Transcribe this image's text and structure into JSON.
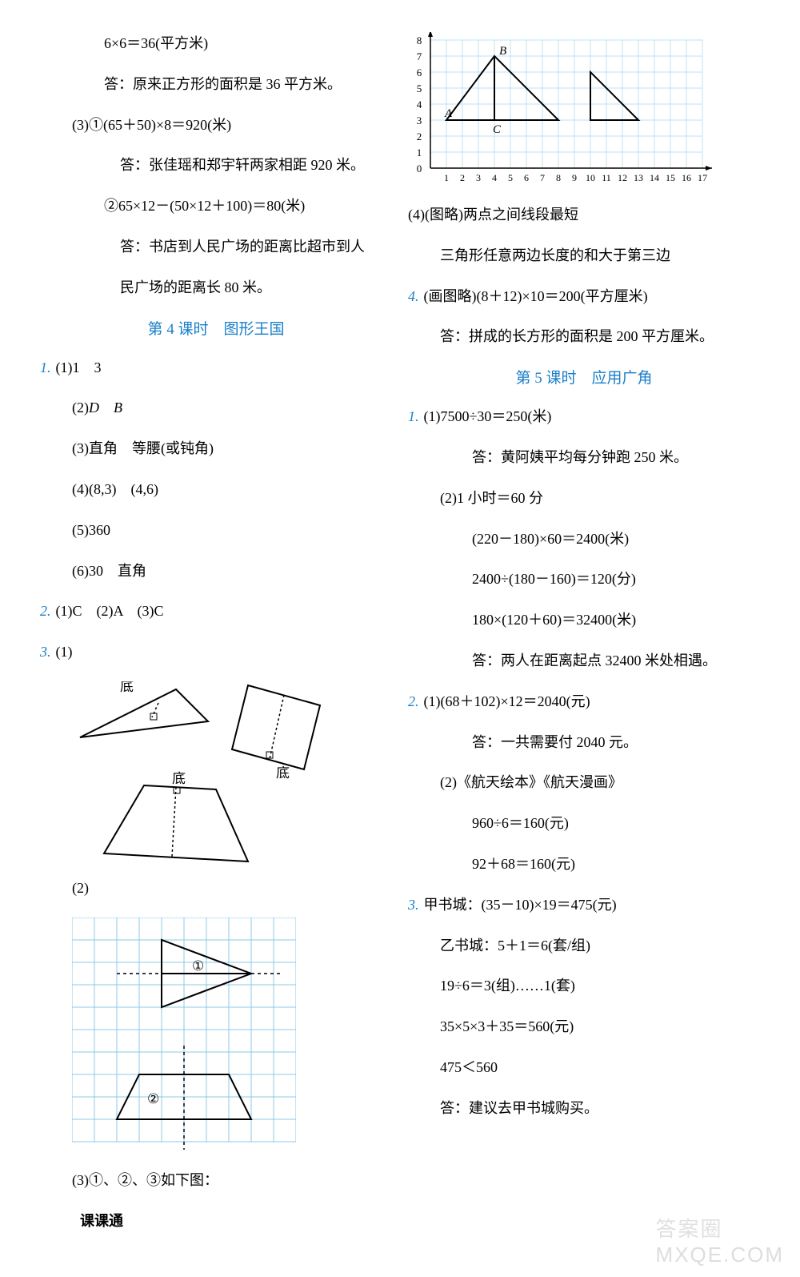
{
  "left": {
    "l1": "6×6＝36(平方米)",
    "l2": "答：原来正方形的面积是 36 平方米。",
    "l3": "(3)①(65＋50)×8＝920(米)",
    "l4": "答：张佳瑶和郑宇轩两家相距 920 米。",
    "l5": "②65×12－(50×12＋100)＝80(米)",
    "l6": "答：书店到人民广场的距离比超市到人",
    "l7": "民广场的距离长 80 米。",
    "sec4": "第 4 课时　图形王国",
    "q1_1": "(1)1　3",
    "q1_2a": "(2)",
    "q1_2b": "D",
    "q1_2c": "　",
    "q1_2d": "B",
    "q1_3": "(3)直角　等腰(或钝角)",
    "q1_4": "(4)(8,3)　(4,6)",
    "q1_5": "(5)360",
    "q1_6": "(6)30　直角",
    "q2": "(1)C　(2)A　(3)C",
    "q3_1": "(1)",
    "q3_fig1_labels": {
      "b1": "底",
      "b2": "底",
      "b3": "底"
    },
    "q3_2": "(2)",
    "q3_fig2_labels": {
      "c1": "①",
      "c2": "②"
    },
    "q3_3": "(3)①、②、③如下图：",
    "footer": "课课通"
  },
  "right": {
    "chart": {
      "y_ticks": [
        "0",
        "1",
        "2",
        "3",
        "4",
        "5",
        "6",
        "7",
        "8"
      ],
      "x_ticks": [
        "1",
        "2",
        "3",
        "4",
        "5",
        "6",
        "7",
        "8",
        "9",
        "10",
        "11",
        "12",
        "13",
        "14",
        "15",
        "16",
        "17"
      ],
      "labels": {
        "A": "A",
        "B": "B",
        "C": "C"
      },
      "grid_color": "#bfe0f3",
      "line_color": "#000000",
      "tri1": {
        "pts": [
          [
            1,
            3
          ],
          [
            4,
            7
          ],
          [
            8,
            3
          ]
        ],
        "alt": [
          [
            4,
            7
          ],
          [
            4,
            3
          ]
        ]
      },
      "tri2": {
        "pts": [
          [
            10,
            6
          ],
          [
            10,
            3
          ],
          [
            13,
            3
          ]
        ]
      }
    },
    "r1": "(4)(图略)两点之间线段最短",
    "r2": "三角形任意两边长度的和大于第三边",
    "q4": "(画图略)(8＋12)×10＝200(平方厘米)",
    "q4b": "答：拼成的长方形的面积是 200 平方厘米。",
    "sec5": "第 5 课时　应用广角",
    "s1a": "(1)7500÷30＝250(米)",
    "s1b": "答：黄阿姨平均每分钟跑 250 米。",
    "s1c": "(2)1 小时＝60 分",
    "s1d": "(220－180)×60＝2400(米)",
    "s1e": "2400÷(180－160)＝120(分)",
    "s1f": "180×(120＋60)＝32400(米)",
    "s1g": "答：两人在距离起点 32400 米处相遇。",
    "s2a": "(1)(68＋102)×12＝2040(元)",
    "s2b": "答：一共需要付 2040 元。",
    "s2c": "(2)《航天绘本》《航天漫画》",
    "s2d": "960÷6＝160(元)",
    "s2e": "92＋68＝160(元)",
    "s3a": "甲书城：(35－10)×19＝475(元)",
    "s3b": "乙书城：5＋1＝6(套/组)",
    "s3c": "19÷6＝3(组)……1(套)",
    "s3d": "35×5×3＋35＝560(元)",
    "s3e": "475＜560",
    "s3f": "答：建议去甲书城购买。"
  },
  "wm": {
    "cn": "答案圈",
    "en": "MXQE.COM"
  }
}
